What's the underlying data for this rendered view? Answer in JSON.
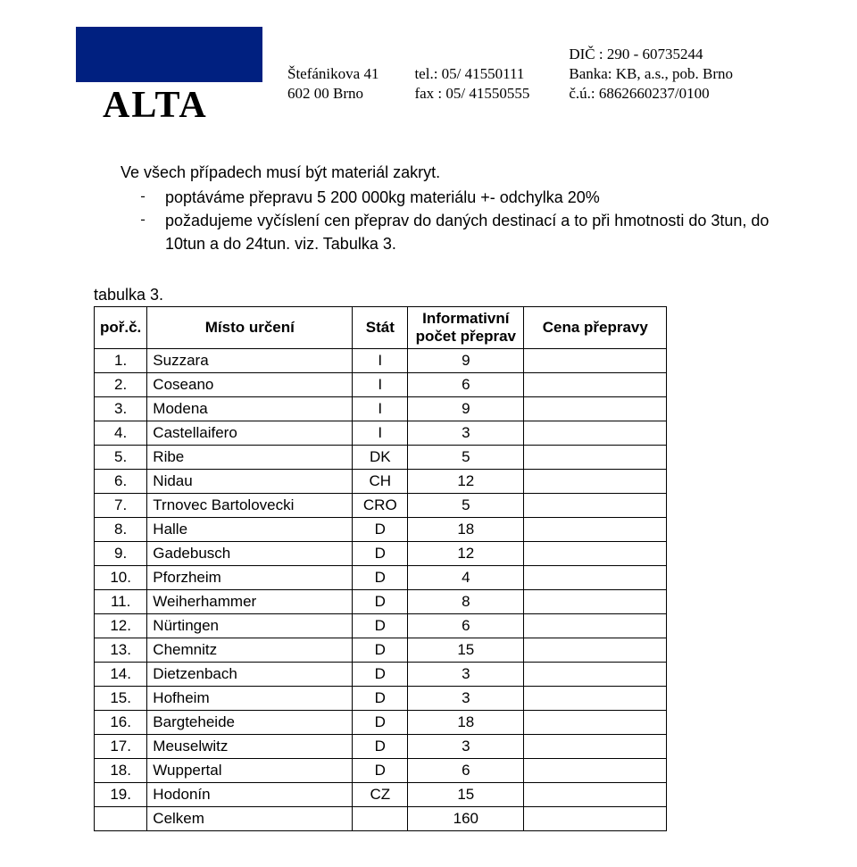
{
  "logo": {
    "bg_color": "#002080",
    "text": "ALTA"
  },
  "header": {
    "col1_line1": "Štefánikova 41",
    "col1_line2": "602 00 Brno",
    "col2_line1": "tel.: 05/ 41550111",
    "col2_line2": "fax : 05/ 41550555",
    "col3_line1": "DIČ : 290 - 60735244",
    "col3_line2": "Banka: KB, a.s., pob. Brno",
    "col3_line3": "č.ú.: 6862660237/0100"
  },
  "intro": {
    "line1": "Ve všech případech musí být materiál zakryt.",
    "bullet1": "poptáváme přepravu 5 200 000kg materiálu +- odchylka 20%",
    "bullet2": "požadujeme vyčíslení cen přeprav do daných destinací a to při hmotnosti do 3tun, do 10tun a do 24tun. viz. Tabulka 3."
  },
  "table": {
    "caption": "tabulka 3.",
    "headers": {
      "num": "poř.č.",
      "dest": "Místo určení",
      "stat": "Stát",
      "count": "Informativní počet přeprav",
      "price": "Cena přepravy"
    },
    "rows": [
      {
        "n": "1.",
        "dest": "Suzzara",
        "stat": "I",
        "count": "9"
      },
      {
        "n": "2.",
        "dest": "Coseano",
        "stat": "I",
        "count": "6"
      },
      {
        "n": "3.",
        "dest": "Modena",
        "stat": "I",
        "count": "9"
      },
      {
        "n": "4.",
        "dest": "Castellaifero",
        "stat": "I",
        "count": "3"
      },
      {
        "n": "5.",
        "dest": "Ribe",
        "stat": "DK",
        "count": "5"
      },
      {
        "n": "6.",
        "dest": "Nidau",
        "stat": "CH",
        "count": "12"
      },
      {
        "n": "7.",
        "dest": "Trnovec Bartolovecki",
        "stat": "CRO",
        "count": "5"
      },
      {
        "n": "8.",
        "dest": "Halle",
        "stat": "D",
        "count": "18"
      },
      {
        "n": "9.",
        "dest": "Gadebusch",
        "stat": "D",
        "count": "12"
      },
      {
        "n": "10.",
        "dest": "Pforzheim",
        "stat": "D",
        "count": "4"
      },
      {
        "n": "11.",
        "dest": "Weiherhammer",
        "stat": "D",
        "count": "8"
      },
      {
        "n": "12.",
        "dest": "Nürtingen",
        "stat": "D",
        "count": "6"
      },
      {
        "n": "13.",
        "dest": "Chemnitz",
        "stat": "D",
        "count": "15"
      },
      {
        "n": "14.",
        "dest": "Dietzenbach",
        "stat": "D",
        "count": "3"
      },
      {
        "n": "15.",
        "dest": "Hofheim",
        "stat": "D",
        "count": "3"
      },
      {
        "n": "16.",
        "dest": "Bargteheide",
        "stat": "D",
        "count": "18"
      },
      {
        "n": "17.",
        "dest": "Meuselwitz",
        "stat": "D",
        "count": "3"
      },
      {
        "n": "18.",
        "dest": "Wuppertal",
        "stat": "D",
        "count": "6"
      },
      {
        "n": "19.",
        "dest": "Hodonín",
        "stat": "CZ",
        "count": "15"
      }
    ],
    "total_label": "Celkem",
    "total_count": "160"
  }
}
